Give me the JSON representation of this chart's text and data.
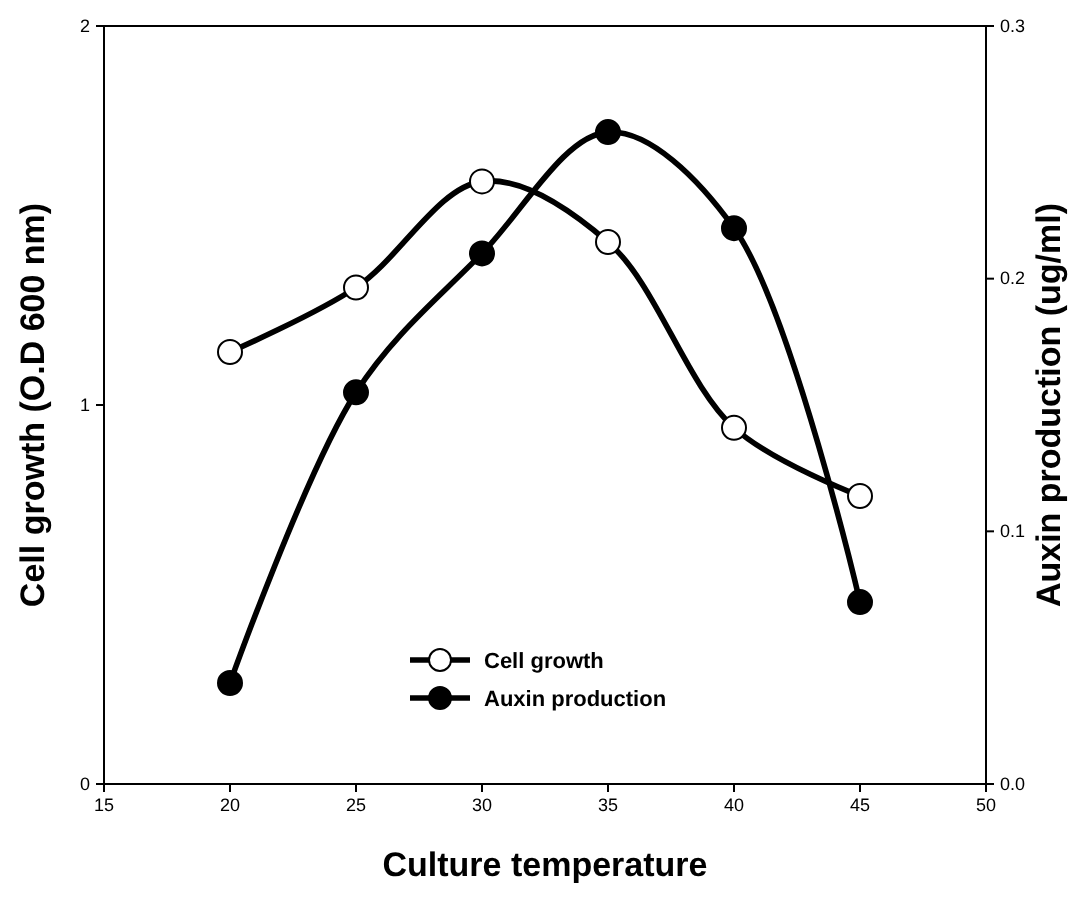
{
  "chart_data": {
    "type": "line",
    "xlabel": "Culture temperature",
    "ylabel": "Cell growth (O.D 600 nm)",
    "y2label": "Auxin production (ug/ml)",
    "x": [
      20,
      25,
      30,
      35,
      40,
      45
    ],
    "series": [
      {
        "name": "Cell growth",
        "color": "#000000",
        "values": [
          1.14,
          1.31,
          1.59,
          1.43,
          0.94,
          0.76
        ]
      },
      {
        "name": "Auxin production",
        "color": "#000000",
        "axis": "y2",
        "values": [
          0.04,
          0.155,
          0.21,
          0.258,
          0.22,
          0.072
        ]
      }
    ],
    "xlim": [
      15,
      50
    ],
    "xticks": [
      15,
      20,
      25,
      30,
      35,
      40,
      45,
      50
    ],
    "ylim": [
      0,
      2
    ],
    "yticks": [
      0,
      1,
      2
    ],
    "y2lim": [
      0,
      0.3
    ],
    "y2ticks": [
      {
        "value": 0,
        "label": "0.0"
      },
      {
        "value": 0.1,
        "label": "0.1"
      },
      {
        "value": 0.2,
        "label": "0.2"
      },
      {
        "value": 0.3,
        "label": "0.3"
      }
    ],
    "grid": false,
    "legend": "bottom",
    "marker": "circle",
    "line_style": "solid"
  }
}
